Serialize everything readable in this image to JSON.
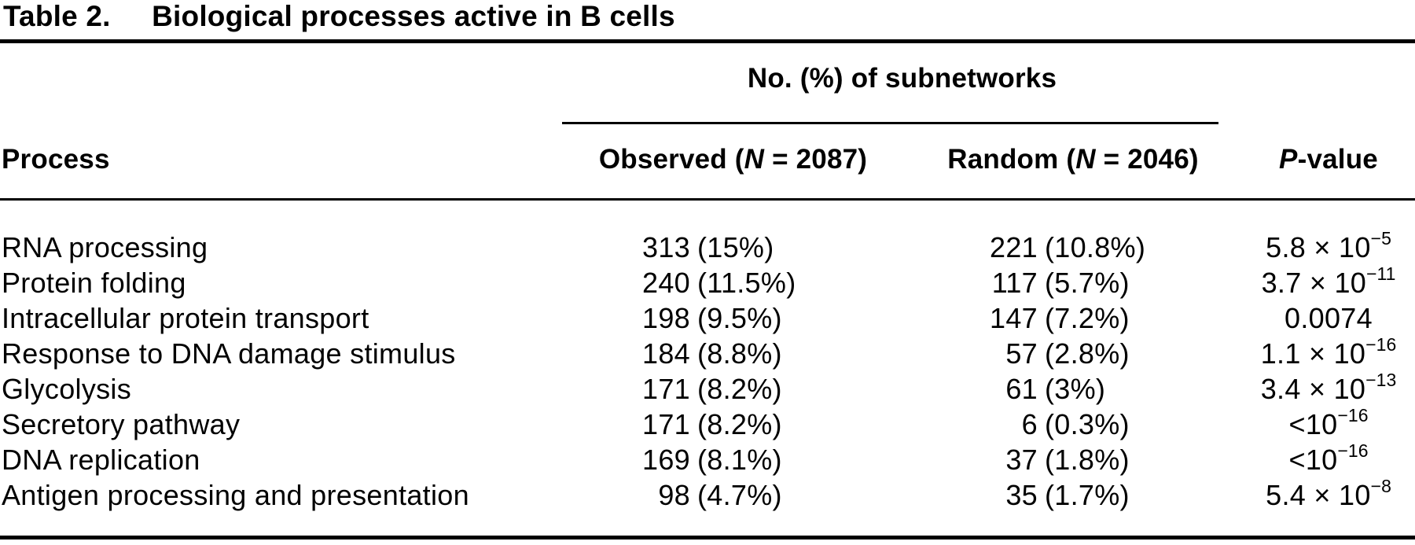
{
  "colors": {
    "text": "#000000",
    "background": "#ffffff",
    "rule": "#000000"
  },
  "caption": {
    "label": "Table 2.",
    "title": "Biological processes active in B cells"
  },
  "header": {
    "spanning": "No. (%) of subnetworks",
    "columns": {
      "process": "Process",
      "observed": {
        "pre": "Observed (",
        "it": "N",
        "post": " = 2087)"
      },
      "random": {
        "pre": "Random (",
        "it": "N",
        "post": " = 2046)"
      },
      "pvalue": {
        "it": "P",
        "post": "-value"
      }
    }
  },
  "rows": [
    {
      "process": "RNA processing",
      "observed_n": "313",
      "observed_pct": "(15%)",
      "random_n": "221",
      "random_pct": "(10.8%)",
      "p_base": "5.8 × 10",
      "p_exp": "−5"
    },
    {
      "process": "Protein folding",
      "observed_n": "240",
      "observed_pct": "(11.5%)",
      "random_n": "117",
      "random_pct": "(5.7%)",
      "p_base": "3.7 × 10",
      "p_exp": "−11"
    },
    {
      "process": "Intracellular protein transport",
      "observed_n": "198",
      "observed_pct": "(9.5%)",
      "random_n": "147",
      "random_pct": "(7.2%)",
      "p_base": "0.0074",
      "p_exp": ""
    },
    {
      "process": "Response to DNA damage stimulus",
      "observed_n": "184",
      "observed_pct": "(8.8%)",
      "random_n": "57",
      "random_pct": "(2.8%)",
      "p_base": "1.1 × 10",
      "p_exp": "−16"
    },
    {
      "process": "Glycolysis",
      "observed_n": "171",
      "observed_pct": "(8.2%)",
      "random_n": "61",
      "random_pct": "(3%)",
      "p_base": "3.4 × 10",
      "p_exp": "−13"
    },
    {
      "process": "Secretory pathway",
      "observed_n": "171",
      "observed_pct": "(8.2%)",
      "random_n": "6",
      "random_pct": "(0.3%)",
      "p_base": "<10",
      "p_exp": "−16"
    },
    {
      "process": "DNA replication",
      "observed_n": "169",
      "observed_pct": "(8.1%)",
      "random_n": "37",
      "random_pct": "(1.8%)",
      "p_base": "<10",
      "p_exp": "−16"
    },
    {
      "process": "Antigen processing and presentation",
      "observed_n": "98",
      "observed_pct": "(4.7%)",
      "random_n": "35",
      "random_pct": "(1.7%)",
      "p_base": "5.4 × 10",
      "p_exp": "−8"
    }
  ]
}
